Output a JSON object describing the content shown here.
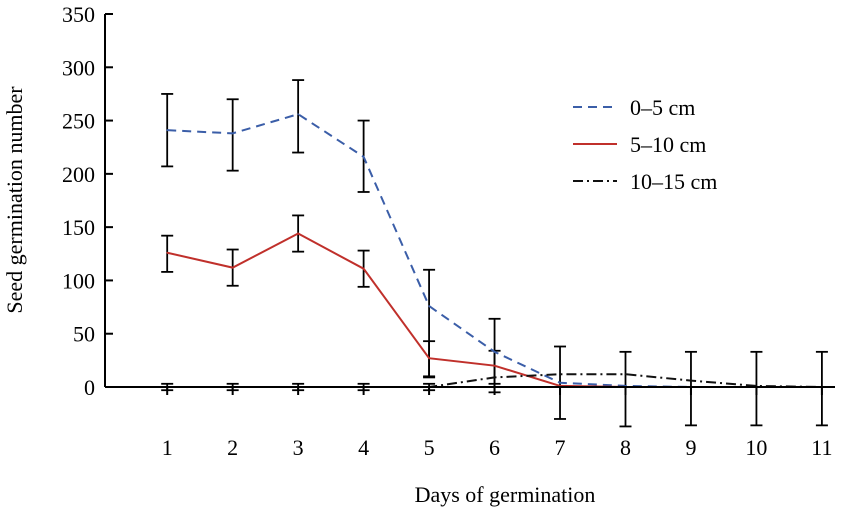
{
  "chart_data": {
    "type": "line",
    "xlabel": "Days of germination",
    "ylabel": "Seed germination number",
    "x": [
      1,
      2,
      3,
      4,
      5,
      6,
      7,
      8,
      9,
      10,
      11
    ],
    "xlim": [
      0.05,
      11.2
    ],
    "ylim": [
      0,
      350
    ],
    "yticks": [
      0,
      50,
      100,
      150,
      200,
      250,
      300,
      350
    ],
    "legend_position": "top-right",
    "grid": false,
    "series": [
      {
        "name": "0–5 cm",
        "style": "dashed",
        "color": "#3b5ea8",
        "values": [
          241,
          238,
          256,
          216,
          76,
          33,
          4,
          1,
          0,
          0,
          0
        ],
        "err_low": [
          207,
          203,
          220,
          183,
          10,
          0,
          0,
          0,
          0,
          0,
          0
        ],
        "err_high": [
          275,
          270,
          288,
          250,
          110,
          64,
          0,
          0,
          0,
          0,
          0
        ]
      },
      {
        "name": "5–10 cm",
        "style": "solid",
        "color": "#c0302b",
        "values": [
          126,
          112,
          144,
          111,
          27,
          20,
          1,
          0,
          0,
          0,
          0
        ],
        "err_low": [
          108,
          95,
          127,
          94,
          9,
          0,
          0,
          0,
          0,
          0,
          0
        ],
        "err_high": [
          142,
          129,
          161,
          128,
          43,
          34,
          0,
          0,
          0,
          0,
          0
        ]
      },
      {
        "name": "10–15 cm",
        "style": "dashdot",
        "color": "#111111",
        "values": [
          0,
          0,
          0,
          0,
          0,
          9,
          12,
          12,
          6,
          1,
          0
        ],
        "err_low": [
          -3,
          -3,
          -3,
          -3,
          -3,
          -5,
          -30,
          -37,
          -36,
          -36,
          -36
        ],
        "err_high": [
          3,
          3,
          3,
          3,
          3,
          3,
          38,
          33,
          33,
          33,
          33
        ]
      }
    ]
  }
}
